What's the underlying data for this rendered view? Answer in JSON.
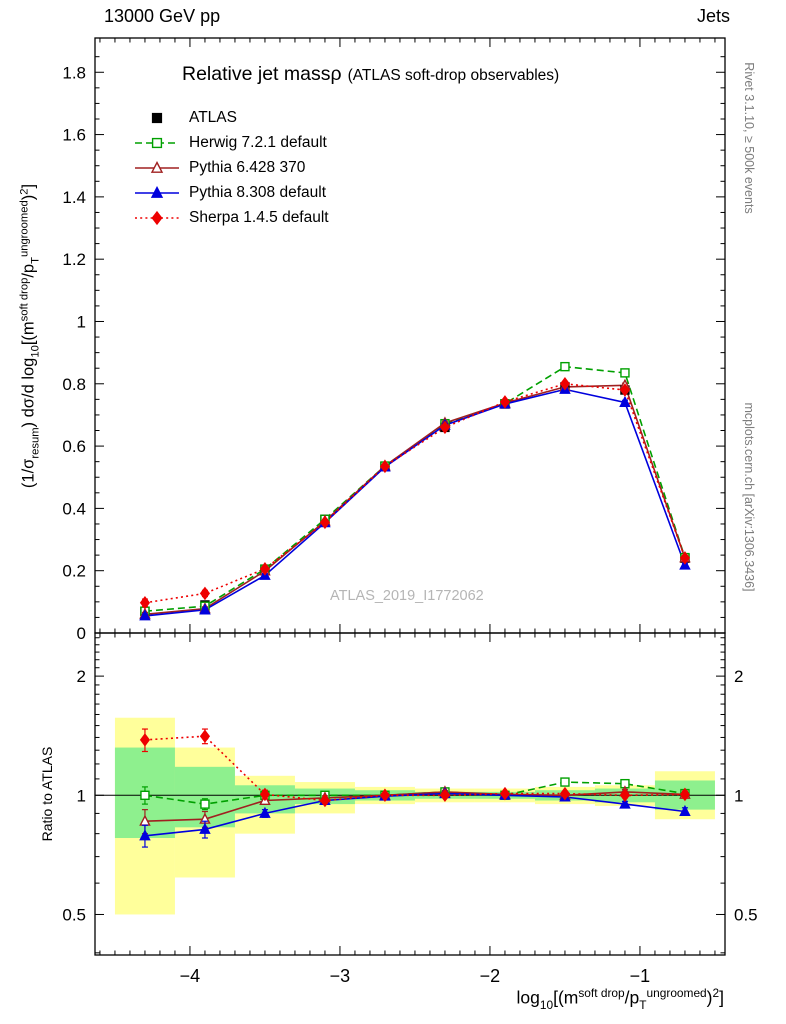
{
  "header": {
    "left": "13000 GeV pp",
    "right": "Jets"
  },
  "title": {
    "main": "Relative jet massρ",
    "sub": "(ATLAS soft-drop observables)"
  },
  "watermark": "ATLAS_2019_I1772062",
  "side": {
    "right_top": "Rivet 3.1.10, ≥ 500k events",
    "right_bottom": "mcplots.cern.ch [arXiv:1306.3436]"
  },
  "axes": {
    "ratio_ylabel": "Ratio to ATLAS",
    "main_ylabel_segments": [
      {
        "t": "(1/σ"
      },
      {
        "t": "resum",
        "style": "sub"
      },
      {
        "t": ") dσ/d log"
      },
      {
        "t": "10",
        "style": "sub"
      },
      {
        "t": "[(m"
      },
      {
        "t": "soft drop",
        "style": "sup"
      },
      {
        "t": "/p"
      },
      {
        "t": "T",
        "style": "sub"
      },
      {
        "t": "ungroomed",
        "style": "sup"
      },
      {
        "t": ")"
      },
      {
        "t": "2",
        "style": "sup"
      },
      {
        "t": "]"
      }
    ],
    "x_label_segments": [
      {
        "t": "log"
      },
      {
        "t": "10",
        "style": "sub"
      },
      {
        "t": "[(m"
      },
      {
        "t": "soft drop",
        "style": "sup"
      },
      {
        "t": "/p"
      },
      {
        "t": "T",
        "style": "sub"
      },
      {
        "t": "ungroomed",
        "style": "sup"
      },
      {
        "t": ")"
      },
      {
        "t": "2",
        "style": "sup"
      },
      {
        "t": "]"
      }
    ]
  },
  "chart_data": {
    "type": "line",
    "x": [
      -4.3,
      -3.9,
      -3.5,
      -3.1,
      -2.7,
      -2.3,
      -1.9,
      -1.5,
      -1.1,
      -0.7
    ],
    "x_axis": {
      "xlim": [
        -4.633,
        -0.433
      ],
      "tick_vals": [
        -4,
        -3,
        -2,
        -1
      ],
      "tick_labels": [
        "−4",
        "−3",
        "−2",
        "−1"
      ]
    },
    "main_axis": {
      "ylim": [
        0,
        1.91
      ],
      "ytick_vals": [
        0,
        0.2,
        0.4,
        0.6,
        0.8,
        1,
        1.2,
        1.4,
        1.6,
        1.8
      ],
      "ytick_labels": [
        "0",
        "0.2",
        "0.4",
        "0.6",
        "0.8",
        "1",
        "1.2",
        "1.4",
        "1.6",
        "1.8"
      ]
    },
    "ratio_axis": {
      "ylim": [
        0.395,
        2.57
      ],
      "scale": "log",
      "ytick_vals": [
        0.5,
        1,
        2
      ],
      "ytick_labels": [
        "0.5",
        "1",
        "2"
      ]
    },
    "band_colors": {
      "yellow": "#ffff9b",
      "green": "#8ef08e"
    },
    "bands": {
      "bin_edges": [
        -4.5,
        -4.1,
        -3.7,
        -3.3,
        -2.9,
        -2.5,
        -2.1,
        -1.7,
        -1.3,
        -0.9,
        -0.5
      ],
      "yellow_lo": [
        0.5,
        0.62,
        0.8,
        0.9,
        0.95,
        0.96,
        0.96,
        0.95,
        0.94,
        0.87
      ],
      "yellow_hi": [
        1.57,
        1.32,
        1.12,
        1.08,
        1.05,
        1.04,
        1.04,
        1.05,
        1.06,
        1.15
      ],
      "green_lo": [
        0.78,
        0.83,
        0.9,
        0.95,
        0.97,
        0.98,
        0.98,
        0.97,
        0.96,
        0.92
      ],
      "green_hi": [
        1.32,
        1.18,
        1.06,
        1.04,
        1.03,
        1.02,
        1.02,
        1.03,
        1.04,
        1.09
      ]
    },
    "series": [
      {
        "name": "ATLAS",
        "color": "#000000",
        "marker": "square",
        "fill": "filled",
        "line": "none",
        "values": [
          0.07,
          0.09,
          0.205,
          0.365,
          0.535,
          0.66,
          0.735,
          0.79,
          0.78,
          0.24
        ],
        "errors": [
          0.006,
          0.006,
          0.007,
          0.008,
          0.008,
          0.008,
          0.008,
          0.009,
          0.009,
          0.007
        ],
        "ratio": null,
        "ratio_errors": null
      },
      {
        "name": "Herwig 7.2.1 default",
        "color": "#00a000",
        "marker": "square",
        "fill": "open",
        "line": "dashed",
        "values": [
          0.07,
          0.086,
          0.205,
          0.365,
          0.536,
          0.672,
          0.736,
          0.855,
          0.835,
          0.242
        ],
        "errors": [
          0.006,
          0.006,
          0.006,
          0.006,
          0.006,
          0.006,
          0.006,
          0.007,
          0.007,
          0.006
        ],
        "ratio": [
          1.0,
          0.95,
          1.0,
          1.0,
          1.0,
          1.02,
          1.0,
          1.08,
          1.07,
          1.01
        ],
        "ratio_errors": [
          0.05,
          0.03,
          0.02,
          0.01,
          0.008,
          0.008,
          0.008,
          0.01,
          0.015,
          0.02
        ]
      },
      {
        "name": "Pythia 6.428 370",
        "color": "#a02020",
        "marker": "triangle",
        "fill": "open",
        "line": "solid",
        "values": [
          0.06,
          0.078,
          0.199,
          0.359,
          0.536,
          0.674,
          0.738,
          0.79,
          0.795,
          0.241
        ],
        "errors": [
          0.006,
          0.006,
          0.006,
          0.006,
          0.006,
          0.006,
          0.006,
          0.007,
          0.007,
          0.006
        ],
        "ratio": [
          0.86,
          0.87,
          0.97,
          0.985,
          1.0,
          1.02,
          1.005,
          1.0,
          1.02,
          1.005
        ],
        "ratio_errors": [
          0.06,
          0.04,
          0.02,
          0.012,
          0.008,
          0.008,
          0.008,
          0.01,
          0.015,
          0.02
        ]
      },
      {
        "name": "Pythia 8.308 default",
        "color": "#0000dd",
        "marker": "triangle",
        "fill": "filled",
        "line": "solid",
        "values": [
          0.055,
          0.074,
          0.185,
          0.354,
          0.533,
          0.667,
          0.735,
          0.782,
          0.74,
          0.218
        ],
        "errors": [
          0.006,
          0.006,
          0.006,
          0.006,
          0.006,
          0.006,
          0.006,
          0.007,
          0.007,
          0.006
        ],
        "ratio": [
          0.79,
          0.82,
          0.9,
          0.97,
          0.995,
          1.01,
          1.0,
          0.99,
          0.95,
          0.91
        ],
        "ratio_errors": [
          0.05,
          0.04,
          0.02,
          0.012,
          0.008,
          0.008,
          0.008,
          0.01,
          0.015,
          0.02
        ]
      },
      {
        "name": "Sherpa 1.4.5 default",
        "color": "#ee0000",
        "marker": "diamond",
        "fill": "filled",
        "line": "dotted",
        "values": [
          0.097,
          0.127,
          0.206,
          0.355,
          0.535,
          0.66,
          0.742,
          0.8,
          0.78,
          0.241
        ],
        "errors": [
          0.012,
          0.01,
          0.008,
          0.007,
          0.006,
          0.006,
          0.006,
          0.007,
          0.007,
          0.006
        ],
        "ratio": [
          1.38,
          1.41,
          1.005,
          0.97,
          1.0,
          1.0,
          1.01,
          1.01,
          1.0,
          1.005
        ],
        "ratio_errors": [
          0.09,
          0.06,
          0.025,
          0.015,
          0.01,
          0.008,
          0.008,
          0.01,
          0.015,
          0.02
        ]
      }
    ]
  }
}
